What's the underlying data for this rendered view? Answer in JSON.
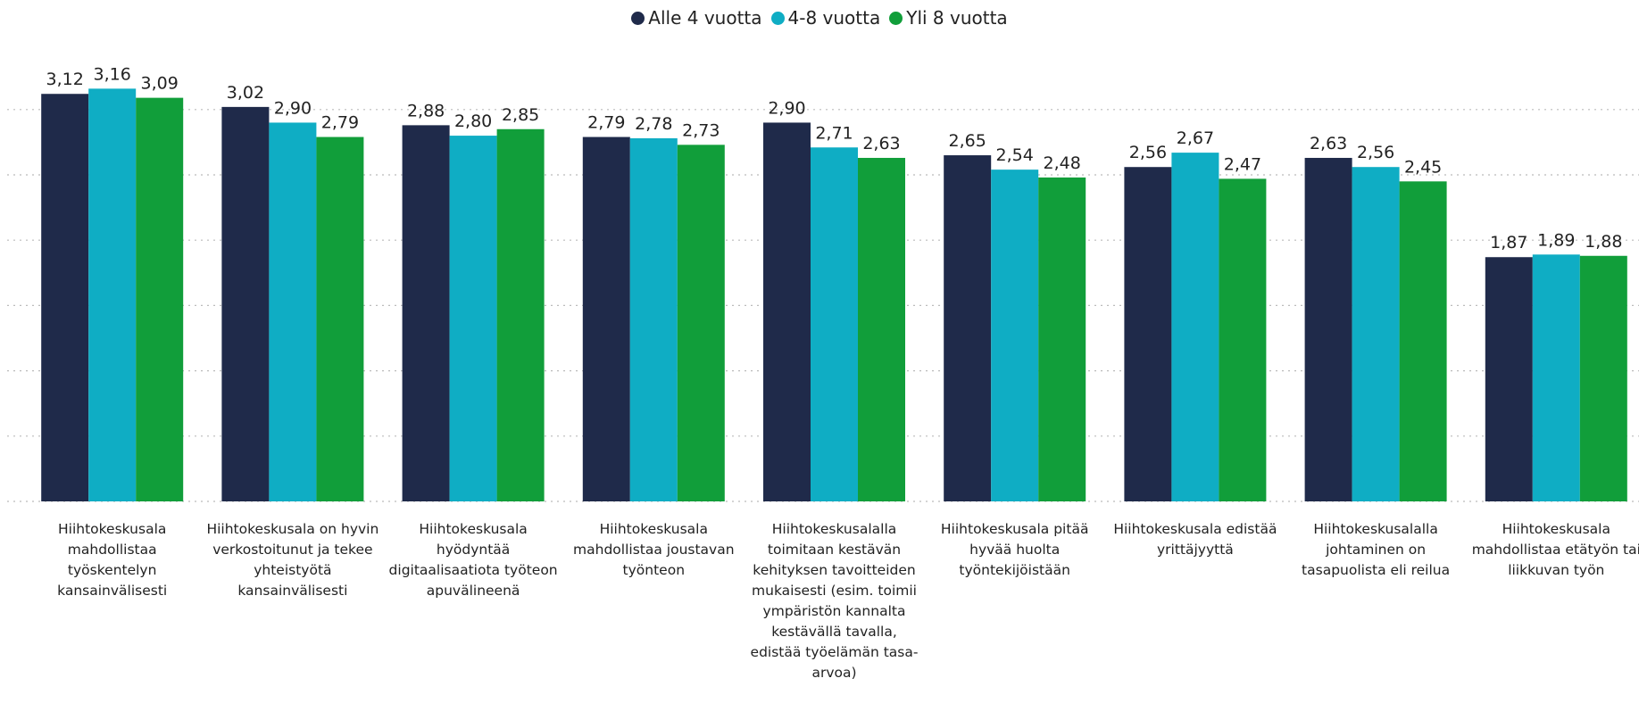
{
  "chart_data": {
    "type": "bar",
    "categories": [
      "Hiihtokeskusala mahdollistaa työskentelyn kansainvälisesti",
      "Hiihtokeskusala on hyvin verkostoitunut ja tekee yhteistyötä kansainvälisesti",
      "Hiihtokeskusala hyödyntää digitaalisaatiota työteon apuvälineenä",
      "Hiihtokeskusala mahdollistaa joustavan työnteon",
      "Hiihtokeskusalalla toimitaan kestävän kehityksen tavoitteiden mukaisesti (esim. toimii ympäristön kannalta kestävällä tavalla, edistää työelämän tasa-arvoa)",
      "Hiihtokeskusala pitää hyvää huolta työntekijöistään",
      "Hiihtokeskusala edistää yrittäjyyttä",
      "Hiihtokeskusalalla johtaminen on tasapuolista eli reilua",
      "Hiihtokeskusala mahdollistaa etätyön tai liikkuvan työn"
    ],
    "series": [
      {
        "name": "Alle 4 vuotta",
        "color": "#1f2a4a",
        "values": [
          3.12,
          3.02,
          2.88,
          2.79,
          2.9,
          2.65,
          2.56,
          2.63,
          1.87
        ],
        "value_labels": [
          "3,12",
          "3,02",
          "2,88",
          "2,79",
          "2,90",
          "2,65",
          "2,56",
          "2,63",
          "1,87"
        ]
      },
      {
        "name": "4-8 vuotta",
        "color": "#0fadc4",
        "values": [
          3.16,
          2.9,
          2.8,
          2.78,
          2.71,
          2.54,
          2.67,
          2.56,
          1.89
        ],
        "value_labels": [
          "3,16",
          "2,90",
          "2,80",
          "2,78",
          "2,71",
          "2,54",
          "2,67",
          "2,56",
          "1,89"
        ]
      },
      {
        "name": "Yli 8 vuotta",
        "color": "#119e3a",
        "values": [
          3.09,
          2.79,
          2.85,
          2.73,
          2.63,
          2.48,
          2.47,
          2.45,
          1.88
        ],
        "value_labels": [
          "3,09",
          "2,79",
          "2,85",
          "2,73",
          "2,63",
          "2,48",
          "2,47",
          "2,45",
          "1,88"
        ]
      }
    ],
    "ylim": [
      0,
      3.5
    ],
    "yticks": [
      0,
      0.5,
      1,
      1.5,
      2,
      2.5,
      3
    ],
    "grid": true,
    "legend": "top"
  }
}
